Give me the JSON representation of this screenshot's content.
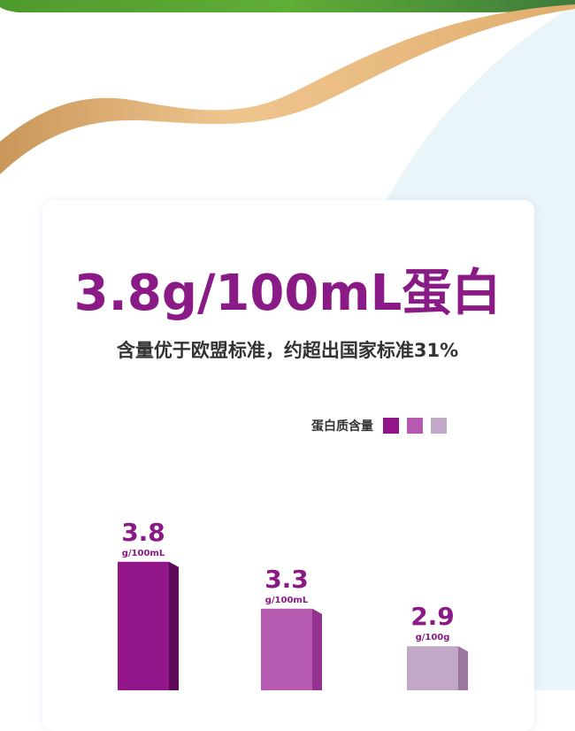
{
  "headline": "3.8g/100mL蛋白",
  "subtitle": "含量优于欧盟标准，约超出国家标准31%",
  "colors": {
    "accent": "#8a1a86",
    "gold": "#e6b87a",
    "light_blue": "#eaf5fa"
  },
  "chart_data": {
    "type": "bar",
    "legend": {
      "label": "蛋白质含量",
      "placement": "top-right"
    },
    "categories": [
      "",
      "",
      ""
    ],
    "values": [
      3.8,
      3.3,
      2.9
    ],
    "value_labels": [
      "3.8",
      "3.3",
      "2.9"
    ],
    "units": [
      "g/100mL",
      "g/100mL",
      "g/100g"
    ],
    "colors": [
      "#93158a",
      "#b659b1",
      "#c1a8c6"
    ],
    "side_colors": [
      "#5c0a57",
      "#93338f",
      "#9b779f"
    ],
    "grid": false
  }
}
